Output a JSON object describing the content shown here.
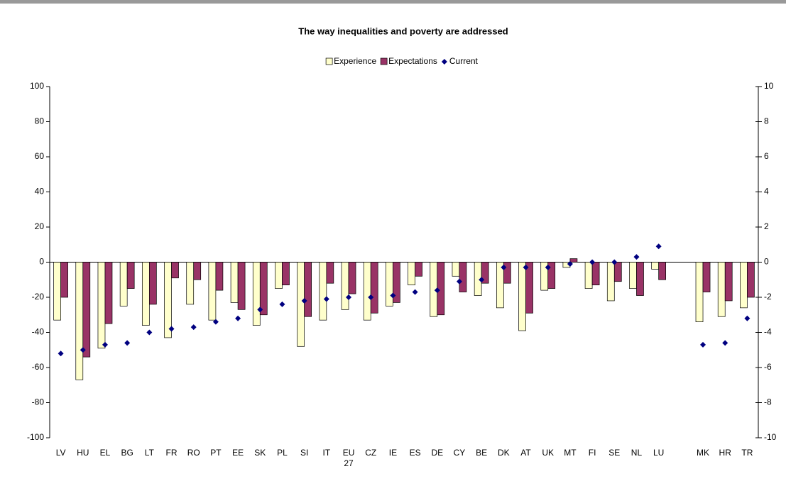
{
  "chart_data": {
    "type": "bar",
    "title": "The way inequalities and poverty are addressed",
    "categories": [
      "LV",
      "HU",
      "EL",
      "BG",
      "LT",
      "FR",
      "RO",
      "PT",
      "EE",
      "SK",
      "PL",
      "SI",
      "IT",
      "EU 27",
      "CZ",
      "IE",
      "ES",
      "DE",
      "CY",
      "BE",
      "DK",
      "AT",
      "UK",
      "MT",
      "FI",
      "SE",
      "NL",
      "LU",
      null,
      "MK",
      "HR",
      "TR"
    ],
    "series": [
      {
        "name": "Experience",
        "color": "#ffffcc",
        "values": [
          -33,
          -67,
          -49,
          -25,
          -36,
          -43,
          -24,
          -33,
          -23,
          -36,
          -15,
          -48,
          -33,
          -27,
          -33,
          -25,
          -13,
          -31,
          -8,
          -19,
          -26,
          -39,
          -16,
          -3,
          -15,
          -22,
          -15,
          -4,
          null,
          -34,
          -31,
          -26
        ]
      },
      {
        "name": "Expectations",
        "color": "#993366",
        "values": [
          -20,
          -54,
          -35,
          -15,
          -24,
          -9,
          -10,
          -16,
          -27,
          -30,
          -13,
          -31,
          -12,
          -18,
          -29,
          -23,
          -8,
          -30,
          -17,
          -12,
          -12,
          -29,
          -15,
          2,
          -13,
          -11,
          -19,
          -10,
          null,
          -17,
          -22,
          -20
        ]
      },
      {
        "name": "Current",
        "color": "#000080",
        "type": "scatter",
        "axis": "y2",
        "values": [
          -5.2,
          -5.0,
          -4.7,
          -4.6,
          -4.0,
          -3.8,
          -3.7,
          -3.4,
          -3.2,
          -2.7,
          -2.4,
          -2.2,
          -2.1,
          -2.0,
          -2.0,
          -1.9,
          -1.7,
          -1.6,
          -1.1,
          -1.0,
          -0.3,
          -0.3,
          -0.3,
          -0.1,
          0.0,
          0.0,
          0.3,
          0.9,
          null,
          -4.7,
          -4.6,
          -3.2
        ]
      }
    ],
    "ylim": [
      -100,
      100
    ],
    "yticks": [
      100,
      80,
      60,
      40,
      20,
      0,
      -20,
      -40,
      -60,
      -80,
      -100
    ],
    "y2lim": [
      -10,
      10
    ],
    "y2ticks": [
      10,
      8,
      6,
      4,
      2,
      0,
      -2,
      -4,
      -6,
      -8,
      -10
    ],
    "legend": "top"
  }
}
